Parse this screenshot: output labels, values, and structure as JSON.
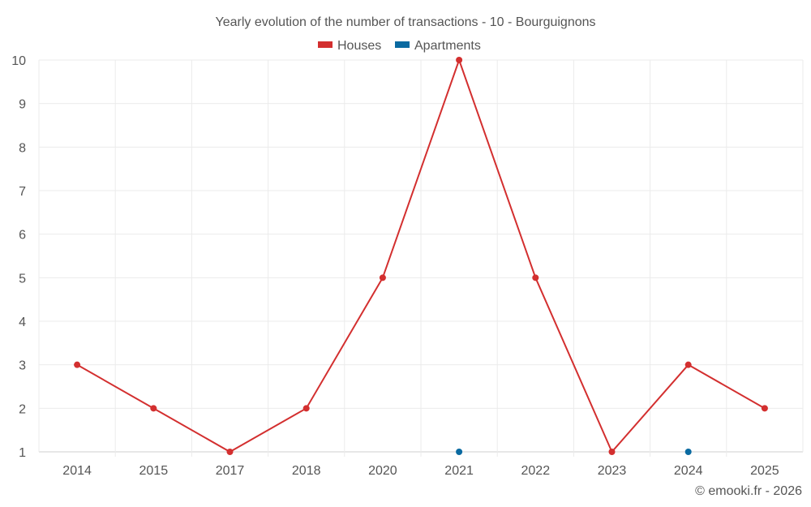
{
  "chart_data": {
    "type": "line",
    "title": "Yearly evolution of the number of transactions - 10 - Bourguignons",
    "categories": [
      "2014",
      "2015",
      "2017",
      "2018",
      "2020",
      "2021",
      "2022",
      "2023",
      "2024",
      "2025"
    ],
    "series": [
      {
        "name": "Houses",
        "color": "#d32f2f",
        "values": [
          3,
          2,
          1,
          2,
          5,
          10,
          5,
          1,
          3,
          2
        ]
      },
      {
        "name": "Apartments",
        "color": "#0a6aa1",
        "values": [
          null,
          null,
          null,
          null,
          null,
          1,
          null,
          null,
          1,
          null
        ]
      }
    ],
    "ylim": [
      1,
      10
    ],
    "yticks": [
      1,
      2,
      3,
      4,
      5,
      6,
      7,
      8,
      9,
      10
    ],
    "xlabel": "",
    "ylabel": "",
    "grid": true,
    "legend_position": "top-center",
    "credit": "© emooki.fr - 2026"
  }
}
